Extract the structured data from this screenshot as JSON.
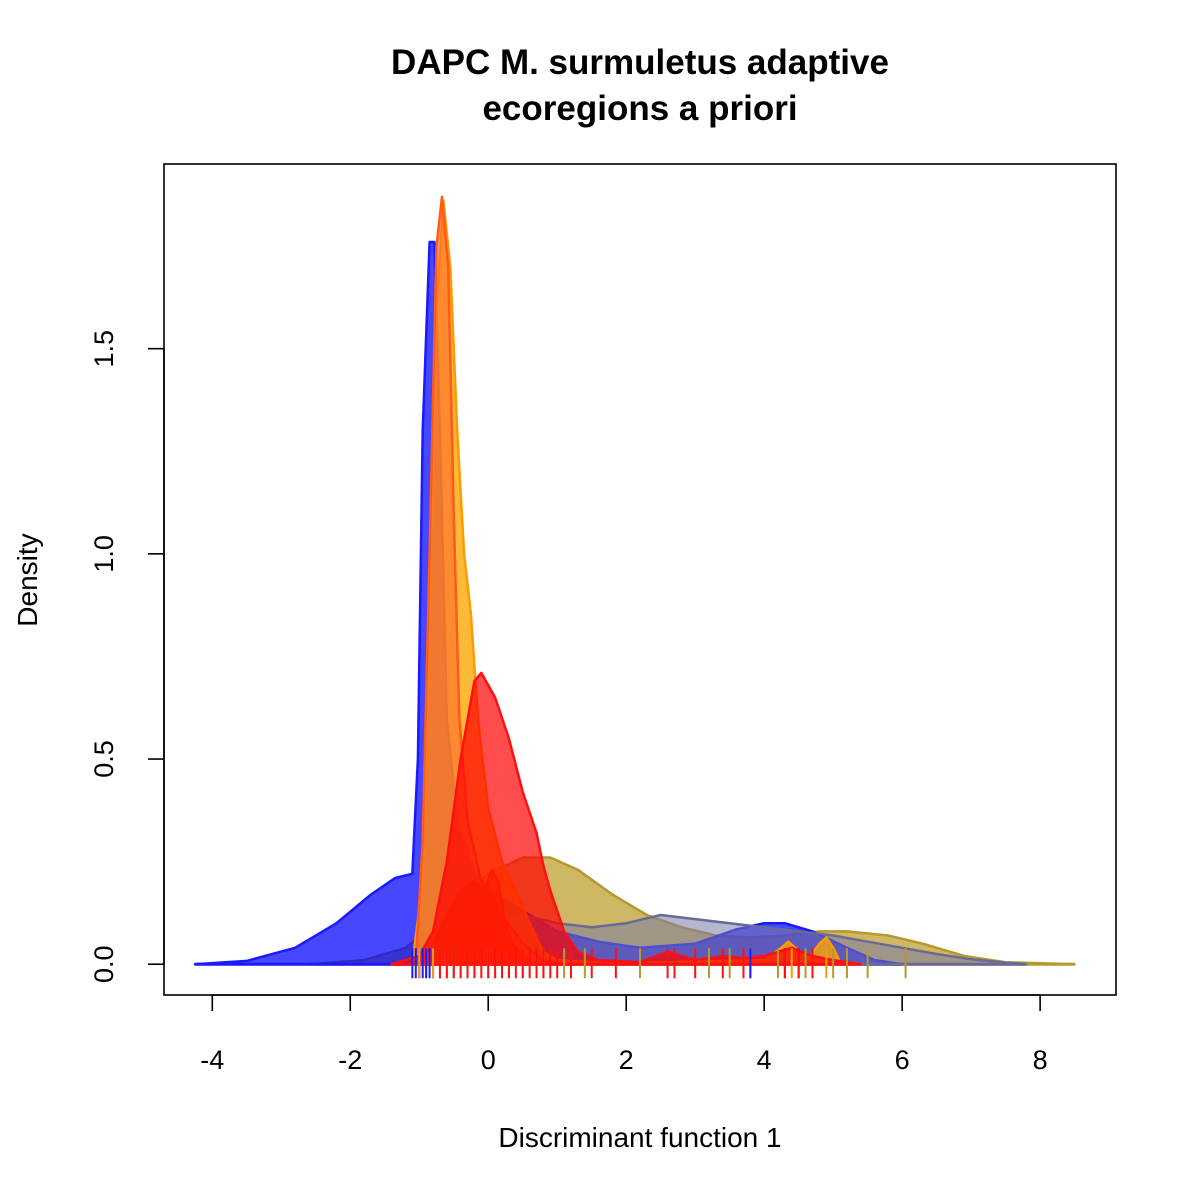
{
  "chart_data": {
    "type": "area",
    "title_lines": [
      "DAPC M. surmuletus adaptive",
      "ecoregions a priori"
    ],
    "xlabel": "Discriminant function 1",
    "ylabel": "Density",
    "xlim": [
      -4.7,
      9.1
    ],
    "ylim": [
      -0.075,
      1.95
    ],
    "x_ticks": [
      -4,
      -2,
      0,
      2,
      4,
      6,
      8
    ],
    "x_tick_labels": [
      "-4",
      "-2",
      "0",
      "2",
      "4",
      "6",
      "8"
    ],
    "y_ticks": [
      0.0,
      0.5,
      1.0,
      1.5
    ],
    "y_tick_labels": [
      "0.0",
      "0.5",
      "1.0",
      "1.5"
    ],
    "grid": false,
    "legend": "none",
    "series": [
      {
        "color": "#bfa02f",
        "stroke": "#b8982c",
        "opacity": 0.75,
        "points": [
          [
            -2.6,
            0
          ],
          [
            -1.8,
            0.01
          ],
          [
            -1.2,
            0.04
          ],
          [
            -0.8,
            0.09
          ],
          [
            -0.4,
            0.16
          ],
          [
            0,
            0.22
          ],
          [
            0.5,
            0.26
          ],
          [
            0.9,
            0.26
          ],
          [
            1.3,
            0.23
          ],
          [
            1.8,
            0.17
          ],
          [
            2.3,
            0.12
          ],
          [
            2.8,
            0.09
          ],
          [
            3.3,
            0.07
          ],
          [
            3.8,
            0.065
          ],
          [
            4.3,
            0.07
          ],
          [
            4.8,
            0.08
          ],
          [
            5.2,
            0.08
          ],
          [
            5.8,
            0.07
          ],
          [
            6.3,
            0.05
          ],
          [
            6.9,
            0.02
          ],
          [
            7.5,
            0.005
          ],
          [
            8.5,
            0
          ]
        ],
        "rug": [
          -1.0,
          -0.9,
          -0.7,
          -0.5,
          -0.3,
          0.2,
          0.5,
          0.8,
          1.1,
          1.4,
          2.2,
          3.2,
          3.5,
          3.8,
          4.2,
          4.6,
          5.0,
          5.2,
          5.5,
          6.05
        ]
      },
      {
        "color": "#0000ff",
        "stroke": "#1a1aff",
        "opacity": 0.72,
        "points": [
          [
            -4.25,
            0
          ],
          [
            -3.5,
            0.008
          ],
          [
            -2.8,
            0.04
          ],
          [
            -2.2,
            0.1
          ],
          [
            -1.7,
            0.17
          ],
          [
            -1.35,
            0.21
          ],
          [
            -1.1,
            0.22
          ],
          [
            -1.02,
            0.5
          ],
          [
            -0.95,
            1.3
          ],
          [
            -0.85,
            1.76
          ],
          [
            -0.78,
            1.76
          ],
          [
            -0.7,
            1.3
          ],
          [
            -0.6,
            0.6
          ],
          [
            -0.45,
            0.35
          ],
          [
            -0.2,
            0.22
          ],
          [
            0.2,
            0.16
          ],
          [
            0.6,
            0.12
          ],
          [
            1.0,
            0.08
          ],
          [
            1.6,
            0.055
          ],
          [
            2.2,
            0.04
          ],
          [
            3.0,
            0.05
          ],
          [
            3.6,
            0.085
          ],
          [
            4.0,
            0.1
          ],
          [
            4.3,
            0.1
          ],
          [
            4.7,
            0.08
          ],
          [
            5.2,
            0.04
          ],
          [
            5.6,
            0.01
          ],
          [
            6.0,
            0
          ]
        ],
        "rug": [
          -1.1,
          -1.05,
          -1.0,
          -0.95,
          -0.9,
          -0.85,
          -0.8,
          3.8,
          4.3,
          4.5
        ]
      },
      {
        "color": "#7a7aa8",
        "stroke": "#6a6a98",
        "opacity": 0.55,
        "points": [
          [
            -0.8,
            0
          ],
          [
            -0.5,
            0.05
          ],
          [
            0,
            0.1
          ],
          [
            0.5,
            0.12
          ],
          [
            1.0,
            0.1
          ],
          [
            1.5,
            0.09
          ],
          [
            2.0,
            0.1
          ],
          [
            2.5,
            0.12
          ],
          [
            3.0,
            0.11
          ],
          [
            3.5,
            0.1
          ],
          [
            4.0,
            0.09
          ],
          [
            4.5,
            0.08
          ],
          [
            5.0,
            0.07
          ],
          [
            5.5,
            0.055
          ],
          [
            6.0,
            0.04
          ],
          [
            6.5,
            0.025
          ],
          [
            7.0,
            0.012
          ],
          [
            7.5,
            0.004
          ],
          [
            7.8,
            0
          ]
        ],
        "rug": []
      },
      {
        "color": "#ffa500",
        "stroke": "#ff9a00",
        "opacity": 0.78,
        "points": [
          [
            -1.1,
            0
          ],
          [
            -0.95,
            0.2
          ],
          [
            -0.85,
            0.9
          ],
          [
            -0.75,
            1.6
          ],
          [
            -0.65,
            1.86
          ],
          [
            -0.55,
            1.7
          ],
          [
            -0.45,
            1.3
          ],
          [
            -0.35,
            1.0
          ],
          [
            -0.25,
            0.85
          ],
          [
            -0.15,
            0.6
          ],
          [
            0,
            0.38
          ],
          [
            0.2,
            0.25
          ],
          [
            0.4,
            0.18
          ],
          [
            0.6,
            0.1
          ],
          [
            0.8,
            0.03
          ],
          [
            1.0,
            0.01
          ],
          [
            1.5,
            0.005
          ],
          [
            2.5,
            0.005
          ],
          [
            4.0,
            0.01
          ],
          [
            4.25,
            0.04
          ],
          [
            4.35,
            0.055
          ],
          [
            4.45,
            0.04
          ],
          [
            4.65,
            0.015
          ],
          [
            4.8,
            0.05
          ],
          [
            4.9,
            0.065
          ],
          [
            5.0,
            0.04
          ],
          [
            5.1,
            0.005
          ],
          [
            5.4,
            0
          ]
        ],
        "rug": [
          -1.0,
          -0.8,
          -0.6,
          -0.4,
          -0.2,
          0.0,
          0.3,
          4.4,
          4.9
        ]
      },
      {
        "color": "#ff6a2a",
        "stroke": "#ff5a1a",
        "opacity": 0.6,
        "points": [
          [
            -1.05,
            0
          ],
          [
            -0.95,
            0.3
          ],
          [
            -0.85,
            1.0
          ],
          [
            -0.75,
            1.75
          ],
          [
            -0.67,
            1.87
          ],
          [
            -0.58,
            1.7
          ],
          [
            -0.5,
            1.1
          ],
          [
            -0.42,
            0.6
          ],
          [
            -0.3,
            0.35
          ],
          [
            -0.1,
            0.2
          ],
          [
            0.2,
            0.12
          ],
          [
            0.5,
            0.05
          ],
          [
            0.8,
            0.01
          ],
          [
            1.1,
            0
          ]
        ],
        "rug": []
      },
      {
        "color": "#ff0000",
        "stroke": "#ff1010",
        "opacity": 0.7,
        "points": [
          [
            -1.4,
            0
          ],
          [
            -1.0,
            0.02
          ],
          [
            -0.8,
            0.08
          ],
          [
            -0.6,
            0.25
          ],
          [
            -0.4,
            0.5
          ],
          [
            -0.2,
            0.69
          ],
          [
            -0.1,
            0.71
          ],
          [
            0.1,
            0.65
          ],
          [
            0.3,
            0.55
          ],
          [
            0.5,
            0.42
          ],
          [
            0.7,
            0.32
          ],
          [
            0.8,
            0.24
          ],
          [
            0.9,
            0.18
          ],
          [
            1.1,
            0.08
          ],
          [
            1.3,
            0.03
          ],
          [
            1.6,
            0.01
          ],
          [
            2.2,
            0.005
          ],
          [
            2.6,
            0.03
          ],
          [
            2.8,
            0.02
          ],
          [
            3.0,
            0.01
          ],
          [
            3.4,
            0.02
          ],
          [
            3.7,
            0.015
          ],
          [
            4.0,
            0.02
          ],
          [
            4.4,
            0.04
          ],
          [
            4.7,
            0.02
          ],
          [
            5.0,
            0.01
          ],
          [
            5.4,
            0
          ]
        ],
        "rug": [
          -0.7,
          -0.6,
          -0.5,
          -0.4,
          -0.3,
          -0.2,
          -0.1,
          0.0,
          0.1,
          0.2,
          0.3,
          0.4,
          0.5,
          0.6,
          0.7,
          0.8,
          0.9,
          1.0,
          1.2,
          1.5,
          1.85,
          2.6,
          2.7,
          3.0,
          3.4,
          3.7,
          4.3,
          4.5,
          4.7
        ]
      },
      {
        "color": "#ff1a00",
        "stroke": "#ff1a00",
        "opacity": 0.65,
        "points": [
          [
            -1.0,
            0
          ],
          [
            -0.8,
            0.05
          ],
          [
            -0.6,
            0.12
          ],
          [
            -0.4,
            0.18
          ],
          [
            -0.2,
            0.2
          ],
          [
            -0.05,
            0.18
          ],
          [
            0.05,
            0.23
          ],
          [
            0.15,
            0.2
          ],
          [
            0.25,
            0.1
          ],
          [
            0.35,
            0.05
          ],
          [
            0.5,
            0.02
          ],
          [
            0.7,
            0
          ]
        ],
        "rug": []
      }
    ]
  }
}
